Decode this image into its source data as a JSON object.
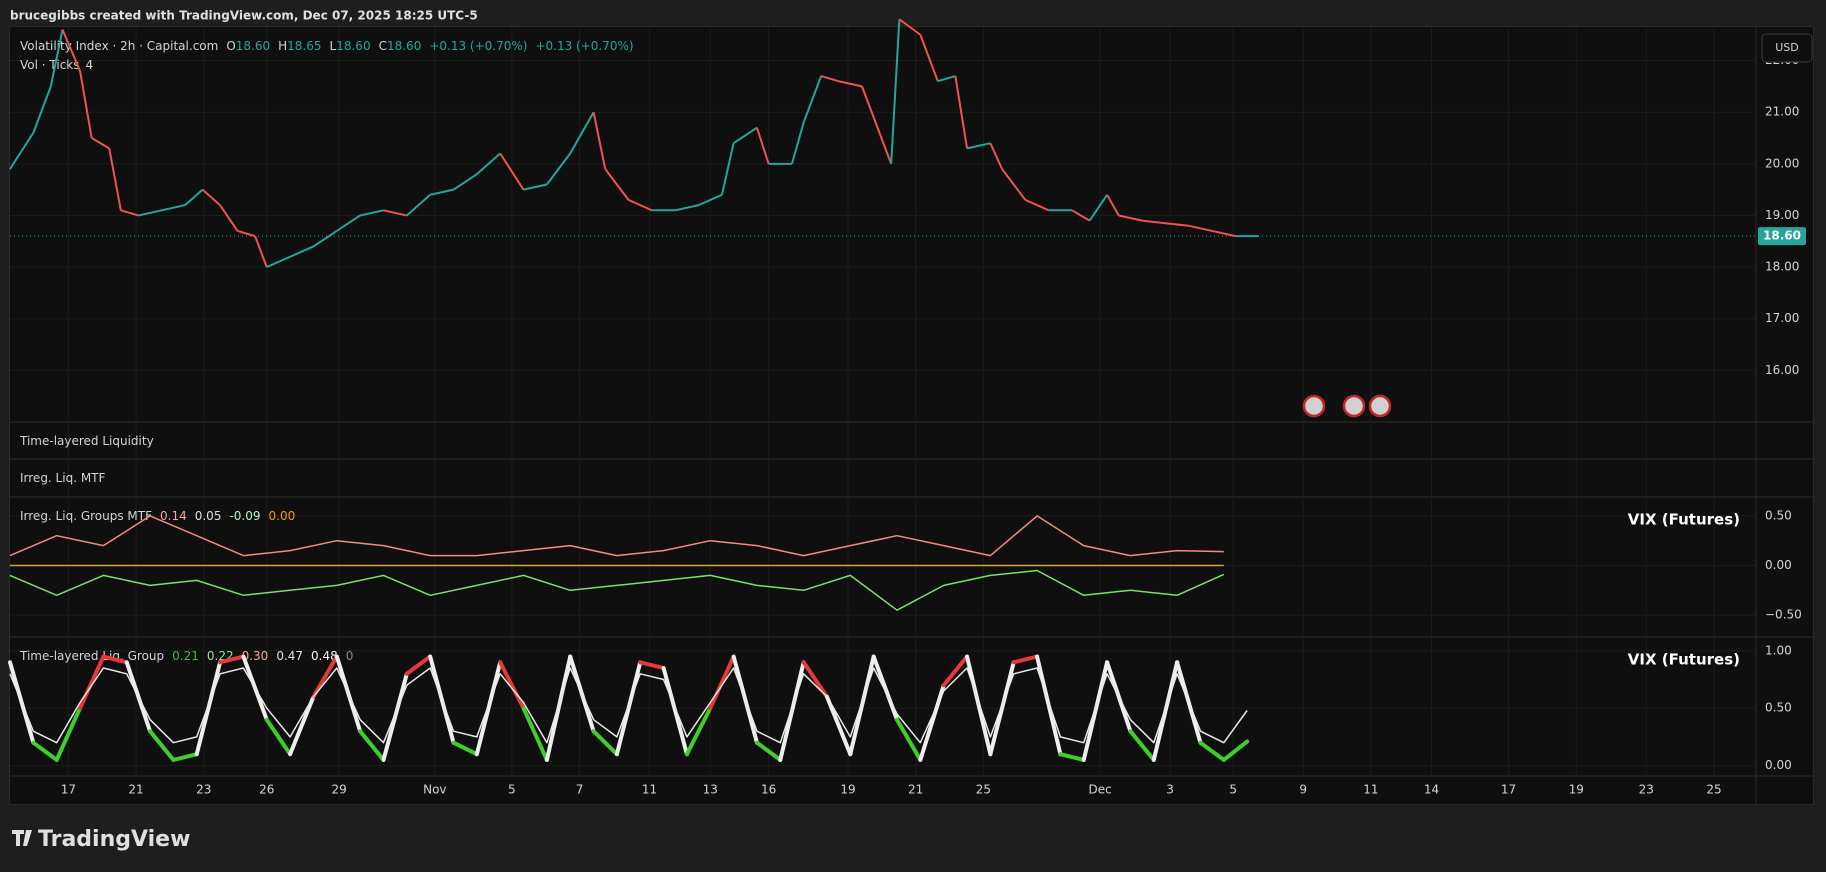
{
  "header": {
    "text": "brucegibbs created with TradingView.com, Dec 07, 2025 18:25 UTC-5"
  },
  "currency": "USD",
  "brand": "TradingView",
  "x_axis": {
    "xlim": [
      0,
      748
    ],
    "xticks": [
      {
        "value": 25,
        "label": "17"
      },
      {
        "value": 54,
        "label": "21"
      },
      {
        "value": 83,
        "label": "23"
      },
      {
        "value": 110,
        "label": "26"
      },
      {
        "value": 141,
        "label": "29"
      },
      {
        "value": 182,
        "label": "Nov"
      },
      {
        "value": 215,
        "label": "5"
      },
      {
        "value": 244,
        "label": "7"
      },
      {
        "value": 274,
        "label": "11"
      },
      {
        "value": 300,
        "label": "13"
      },
      {
        "value": 325,
        "label": "16"
      },
      {
        "value": 359,
        "label": "19"
      },
      {
        "value": 388,
        "label": "21"
      },
      {
        "value": 417,
        "label": "25"
      },
      {
        "value": 467,
        "label": "Dec"
      },
      {
        "value": 497,
        "label": "3"
      },
      {
        "value": 524,
        "label": "5"
      },
      {
        "value": 554,
        "label": "9"
      },
      {
        "value": 583,
        "label": "11"
      },
      {
        "value": 609,
        "label": "14"
      },
      {
        "value": 642,
        "label": "17"
      },
      {
        "value": 671,
        "label": "19"
      },
      {
        "value": 701,
        "label": "23"
      },
      {
        "value": 730,
        "label": "25"
      }
    ]
  },
  "chart_data": [
    {
      "type": "line",
      "title": "Volatility Index · 2h · Capital.com",
      "ohlc": [
        {
          "name": "O",
          "value": {
            "value": 18.6,
            "label": "18.60"
          }
        },
        {
          "name": "H",
          "value": {
            "value": 18.65,
            "label": "18.65"
          }
        },
        {
          "name": "L",
          "value": {
            "value": 18.6,
            "label": "18.60"
          }
        },
        {
          "name": "C",
          "value": {
            "value": 18.6,
            "label": "18.60"
          }
        }
      ],
      "change": [
        "+0.13 (+0.70%)",
        "+0.13 (+0.70%)"
      ],
      "subtitle": "Vol · Ticks",
      "subtitle_value": 4,
      "up_color": "#26a69a",
      "down_color": "#ef5350",
      "last_price": {
        "value": 18.6,
        "label": "18.60"
      },
      "ylim": [
        15.0,
        22.65
      ],
      "yticks": [
        {
          "value": 16,
          "label": "16.00"
        },
        {
          "value": 17,
          "label": "17.00"
        },
        {
          "value": 18,
          "label": "18.00"
        },
        {
          "value": 19,
          "label": "19.00"
        },
        {
          "value": 20,
          "label": "20.00"
        },
        {
          "value": 21,
          "label": "21.00"
        },
        {
          "value": 22,
          "label": "22.00"
        }
      ],
      "x": [
        0,
        10,
        17.5,
        22.5,
        30,
        35,
        42.5,
        47.5,
        55,
        65,
        75,
        82.5,
        90,
        97.5,
        105,
        110,
        120,
        130,
        140,
        150,
        160,
        170,
        180,
        190,
        200,
        210,
        220,
        230,
        240,
        250,
        255,
        265,
        275,
        285,
        295,
        305,
        310,
        320,
        325,
        335,
        340,
        347.5,
        355,
        365,
        372.5,
        377.5,
        381,
        390,
        397.5,
        405,
        410,
        420,
        425,
        435,
        445,
        455,
        462.5,
        470,
        475,
        485,
        495,
        505,
        515,
        525,
        535
      ],
      "values": [
        19.9,
        20.6,
        21.5,
        22.6,
        21.8,
        20.5,
        20.3,
        19.1,
        19.0,
        19.1,
        19.2,
        19.5,
        19.2,
        18.7,
        18.6,
        18.0,
        18.2,
        18.4,
        18.7,
        19.0,
        19.1,
        19.0,
        19.4,
        19.5,
        19.8,
        20.2,
        19.5,
        19.6,
        20.2,
        21.0,
        19.9,
        19.3,
        19.1,
        19.1,
        19.2,
        19.4,
        20.4,
        20.7,
        20.0,
        20.0,
        20.8,
        21.7,
        21.6,
        21.5,
        20.6,
        20.0,
        22.8,
        22.5,
        21.6,
        21.7,
        20.3,
        20.4,
        19.9,
        19.3,
        19.1,
        19.1,
        18.9,
        19.4,
        19.0,
        18.9,
        18.85,
        18.8,
        18.7,
        18.6,
        18.6
      ]
    },
    {
      "type": "pane",
      "title": "Time-layered Liquidity"
    },
    {
      "type": "pane",
      "title": "Irreg. Liq. MTF"
    },
    {
      "type": "line",
      "title": "Irreg. Liq. Groups MTF",
      "label": "VIX (Futures)",
      "legend_values": [
        {
          "value": 0.14,
          "color": "#f4a9a0"
        },
        {
          "value": 0.05,
          "color": "#e0e0e0"
        },
        {
          "value": -0.09,
          "color": "#b9f6ca"
        },
        {
          "value": {
            "value": 0,
            "label": "0.00"
          },
          "color": "#ff9800"
        }
      ],
      "ylim": [
        -0.7,
        0.69
      ],
      "yticks": [
        {
          "value": 0.5,
          "label": "0.50"
        },
        {
          "value": 0,
          "label": "0.00"
        },
        {
          "value": -0.5,
          "label": "−0.50"
        }
      ],
      "hline": 0,
      "hline_color": "#d4a53a",
      "x": [
        0,
        20,
        40,
        60,
        80,
        100,
        120,
        140,
        160,
        180,
        200,
        220,
        240,
        260,
        280,
        300,
        320,
        340,
        360,
        380,
        400,
        420,
        440,
        460,
        480,
        500,
        520
      ],
      "series": [
        {
          "color": "#f28b82",
          "values": [
            0.1,
            0.3,
            0.2,
            0.5,
            0.3,
            0.1,
            0.15,
            0.25,
            0.2,
            0.1,
            0.1,
            0.15,
            0.2,
            0.1,
            0.15,
            0.25,
            0.2,
            0.1,
            0.2,
            0.3,
            0.2,
            0.1,
            0.5,
            0.2,
            0.1,
            0.15,
            0.14
          ]
        },
        {
          "color": "#7be06b",
          "values": [
            -0.1,
            -0.3,
            -0.1,
            -0.2,
            -0.15,
            -0.3,
            -0.25,
            -0.2,
            -0.1,
            -0.3,
            -0.2,
            -0.1,
            -0.25,
            -0.2,
            -0.15,
            -0.1,
            -0.2,
            -0.25,
            -0.1,
            -0.45,
            -0.2,
            -0.1,
            -0.05,
            -0.3,
            -0.25,
            -0.3,
            -0.09
          ]
        }
      ]
    },
    {
      "type": "line",
      "title": "Time-layered Liq. Group",
      "label": "VIX (Futures)",
      "legend_values": [
        {
          "value": 0.21,
          "color": "#4caf50"
        },
        {
          "value": 0.22,
          "color": "#9be58f"
        },
        {
          "value": {
            "value": 0.3,
            "label": "0.30"
          },
          "color": "#f4a9a0"
        },
        {
          "value": 0.47,
          "color": "#e0e0e0"
        },
        {
          "value": 0.48,
          "color": "#f5f5f5"
        },
        {
          "value": 0,
          "color": "#8a8a8a"
        }
      ],
      "ylim": [
        -0.09,
        1.12
      ],
      "yticks": [
        {
          "value": 1,
          "label": "1.00"
        },
        {
          "value": 0.5,
          "label": "0.50"
        },
        {
          "value": 0,
          "label": "0.00"
        }
      ],
      "gradient": [
        "#3fcf2a",
        "#eeeeee",
        "#e53935"
      ],
      "x": [
        0,
        10,
        20,
        30,
        40,
        50,
        60,
        70,
        80,
        90,
        100,
        110,
        120,
        130,
        140,
        150,
        160,
        170,
        180,
        190,
        200,
        210,
        220,
        230,
        240,
        250,
        260,
        270,
        280,
        290,
        300,
        310,
        320,
        330,
        340,
        350,
        360,
        370,
        380,
        390,
        400,
        410,
        420,
        430,
        440,
        450,
        460,
        470,
        480,
        490,
        500,
        510,
        520,
        530
      ],
      "series": [
        {
          "width": 4,
          "values": [
            0.9,
            0.2,
            0.05,
            0.5,
            0.95,
            0.9,
            0.3,
            0.05,
            0.1,
            0.9,
            0.95,
            0.4,
            0.1,
            0.6,
            0.95,
            0.3,
            0.05,
            0.8,
            0.95,
            0.2,
            0.1,
            0.9,
            0.5,
            0.05,
            0.95,
            0.3,
            0.1,
            0.9,
            0.85,
            0.1,
            0.5,
            0.95,
            0.2,
            0.05,
            0.9,
            0.6,
            0.1,
            0.95,
            0.4,
            0.05,
            0.7,
            0.95,
            0.1,
            0.9,
            0.95,
            0.1,
            0.05,
            0.9,
            0.3,
            0.05,
            0.9,
            0.2,
            0.05,
            0.21
          ]
        },
        {
          "width": 1.5,
          "color": "#e8e8e8",
          "values": [
            0.8,
            0.3,
            0.2,
            0.55,
            0.85,
            0.8,
            0.4,
            0.2,
            0.25,
            0.8,
            0.85,
            0.5,
            0.25,
            0.6,
            0.85,
            0.4,
            0.2,
            0.7,
            0.85,
            0.3,
            0.25,
            0.8,
            0.55,
            0.2,
            0.85,
            0.4,
            0.25,
            0.8,
            0.75,
            0.25,
            0.55,
            0.85,
            0.3,
            0.2,
            0.8,
            0.6,
            0.25,
            0.85,
            0.45,
            0.2,
            0.65,
            0.85,
            0.25,
            0.8,
            0.85,
            0.25,
            0.2,
            0.8,
            0.4,
            0.2,
            0.8,
            0.3,
            0.2,
            0.48
          ]
        }
      ]
    }
  ]
}
